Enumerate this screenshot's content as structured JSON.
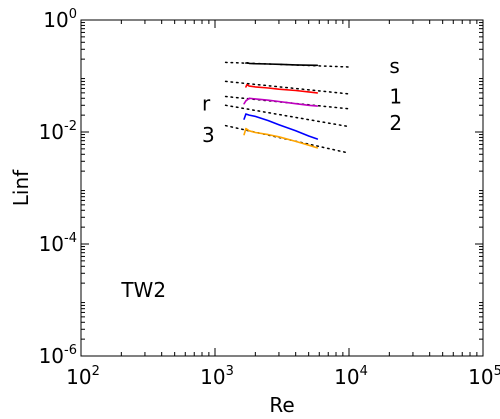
{
  "chart_data": {
    "type": "line",
    "title": "",
    "xlabel": "Re",
    "ylabel": "Linf",
    "xscale": "log",
    "yscale": "log",
    "xlim": [
      100,
      100000
    ],
    "ylim": [
      1e-06,
      1
    ],
    "x_ticks": [
      {
        "value": 100,
        "base": "10",
        "exp": "2"
      },
      {
        "value": 1000,
        "base": "10",
        "exp": "3"
      },
      {
        "value": 10000,
        "base": "10",
        "exp": "4"
      },
      {
        "value": 100000,
        "base": "10",
        "exp": "5"
      }
    ],
    "y_ticks": [
      {
        "value": 1e-06,
        "base": "10",
        "exp": "-6"
      },
      {
        "value": 0.0001,
        "base": "10",
        "exp": "-4"
      },
      {
        "value": 0.01,
        "base": "10",
        "exp": "-2"
      },
      {
        "value": 1,
        "base": "10",
        "exp": "0"
      }
    ],
    "grid": false,
    "legend": "none",
    "annotations": [
      {
        "text": "s",
        "x": 20000,
        "y": 0.15
      },
      {
        "text": "1",
        "x": 20000,
        "y": 0.043
      },
      {
        "text": "2",
        "x": 20000,
        "y": 0.0145
      },
      {
        "text": "r",
        "x": 800,
        "y": 0.032
      },
      {
        "text": "3",
        "x": 800,
        "y": 0.0088
      },
      {
        "text": "TW2",
        "x": 200,
        "y": 1.5e-05
      }
    ],
    "series": [
      {
        "color": "#000000",
        "style": "solid",
        "x": [
          1700,
          1750,
          1800,
          2000,
          2500,
          3000,
          4000,
          5000,
          5800
        ],
        "y": [
          0.17,
          0.172,
          0.168,
          0.166,
          0.164,
          0.162,
          0.158,
          0.156,
          0.155
        ]
      },
      {
        "color": "#ff0000",
        "style": "solid",
        "x": [
          1700,
          1730,
          1800,
          2000,
          2500,
          3000,
          4000,
          5000,
          5800
        ],
        "y": [
          0.064,
          0.07,
          0.066,
          0.064,
          0.061,
          0.058,
          0.055,
          0.052,
          0.05
        ]
      },
      {
        "color": "#bf00bf",
        "style": "solid",
        "x": [
          1650,
          1700,
          1800,
          2000,
          2500,
          3000,
          4000,
          5000,
          5800
        ],
        "y": [
          0.032,
          0.036,
          0.04,
          0.039,
          0.037,
          0.035,
          0.032,
          0.03,
          0.029
        ]
      },
      {
        "color": "#0000ff",
        "style": "solid",
        "x": [
          1650,
          1700,
          1800,
          2000,
          2500,
          3000,
          4000,
          5000,
          5800
        ],
        "y": [
          0.017,
          0.021,
          0.02,
          0.019,
          0.016,
          0.0135,
          0.0105,
          0.0085,
          0.0075
        ]
      },
      {
        "color": "#ffa500",
        "style": "solid",
        "x": [
          1650,
          1700,
          1800,
          2000,
          2500,
          3000,
          4000,
          5000,
          5800
        ],
        "y": [
          0.009,
          0.0115,
          0.0105,
          0.0098,
          0.009,
          0.0082,
          0.0068,
          0.0058,
          0.0052
        ]
      },
      {
        "color": "#000000",
        "style": "dotted",
        "x": [
          1200,
          10000
        ],
        "y": [
          0.175,
          0.145
        ]
      },
      {
        "color": "#000000",
        "style": "dotted",
        "x": [
          1200,
          10000
        ],
        "y": [
          0.08,
          0.048
        ]
      },
      {
        "color": "#000000",
        "style": "dotted",
        "x": [
          1200,
          10000
        ],
        "y": [
          0.043,
          0.026
        ]
      },
      {
        "color": "#000000",
        "style": "dotted",
        "x": [
          1200,
          10000
        ],
        "y": [
          0.03,
          0.0125
        ]
      },
      {
        "color": "#000000",
        "style": "dotted",
        "x": [
          1200,
          10000
        ],
        "y": [
          0.013,
          0.0042
        ]
      }
    ]
  }
}
